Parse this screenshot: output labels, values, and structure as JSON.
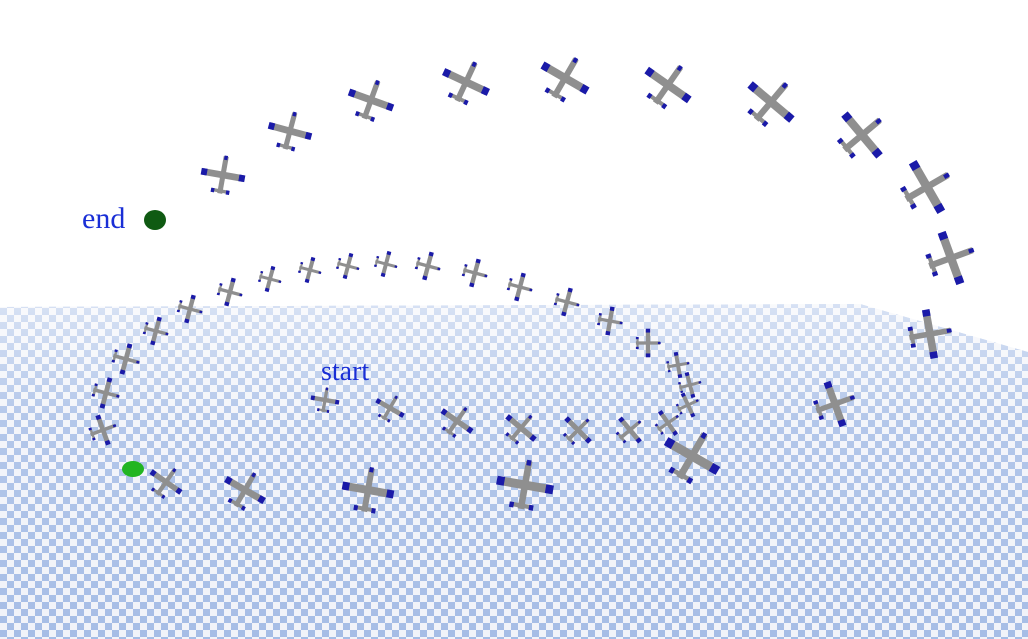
{
  "labels": {
    "start": "start",
    "end": "end"
  },
  "colors": {
    "sky": "#ffffff",
    "checker_light": "#f1f3f9",
    "checker_dark": "#a6bde6",
    "label_text": "#1a2fd6",
    "start_marker": "#22b522",
    "end_marker": "#0f5a12",
    "aircraft_body": "#8f8f8f",
    "aircraft_tips": "#1a1aa8"
  },
  "objects": {
    "aircraft_icon": "plane-icon",
    "start_marker_icon": "start-marker-icon",
    "end_marker_icon": "end-marker-icon"
  }
}
